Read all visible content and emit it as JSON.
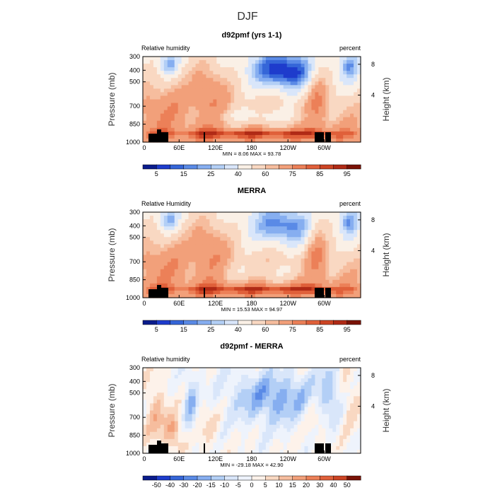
{
  "figure": {
    "title": "DJF"
  },
  "colors": {
    "abs_scale": [
      "#0a1c8c",
      "#1e3ccc",
      "#3566d8",
      "#5a8ae6",
      "#86aef0",
      "#b3cff6",
      "#d9e6fa",
      "#faf0e6",
      "#f9d8c2",
      "#f6bd9e",
      "#f2a07a",
      "#ec8058",
      "#e0603a",
      "#cc4424",
      "#b02a16",
      "#7a1206"
    ],
    "diff_scale": [
      "#0a1c8c",
      "#1e3ccc",
      "#3566d8",
      "#5a8ae6",
      "#86aef0",
      "#b3cff6",
      "#d9e6fa",
      "#eef3fc",
      "#fdf2ea",
      "#f9d8c2",
      "#f6bd9e",
      "#f2a07a",
      "#ec8058",
      "#e0603a",
      "#cc4424",
      "#7a1206"
    ]
  },
  "chart_data": [
    {
      "type": "heatmap",
      "title": "d92pmf (yrs 1-1)",
      "left_label": "Relative humidity",
      "right_label": "percent",
      "ylabel": "Pressure (mb)",
      "ylabel_right": "Height (km)",
      "yticks": [
        "300",
        "400",
        "500",
        "700",
        "850",
        "1000"
      ],
      "yticks_right": [
        "8",
        "4"
      ],
      "xticks": [
        "0",
        "60E",
        "120E",
        "180",
        "120W",
        "60W"
      ],
      "stats": "MIN =    8.06   MAX =   93.78",
      "colorbar_labels": [
        "5",
        "15",
        "25",
        "40",
        "60",
        "75",
        "85",
        "95"
      ],
      "scale": "abs_scale"
    },
    {
      "type": "heatmap",
      "title": "MERRA",
      "left_label": "Relative Humidity",
      "right_label": "percent",
      "ylabel": "Pressure (mb)",
      "ylabel_right": "Height (km)",
      "yticks": [
        "300",
        "400",
        "500",
        "700",
        "850",
        "1000"
      ],
      "yticks_right": [
        "8",
        "4"
      ],
      "xticks": [
        "0",
        "60E",
        "120E",
        "180",
        "120W",
        "60W"
      ],
      "stats": "MIN =   15.53   MAX =   94.97",
      "colorbar_labels": [
        "5",
        "15",
        "25",
        "40",
        "60",
        "75",
        "85",
        "95"
      ],
      "scale": "abs_scale"
    },
    {
      "type": "heatmap",
      "title": "d92pmf - MERRA",
      "left_label": "Relative humidity",
      "right_label": "percent",
      "ylabel": "Pressure (mb)",
      "ylabel_right": "Height (km)",
      "yticks": [
        "300",
        "400",
        "500",
        "700",
        "850",
        "1000"
      ],
      "yticks_right": [
        "8",
        "4"
      ],
      "xticks": [
        "0",
        "60E",
        "120E",
        "180",
        "120W",
        "60W"
      ],
      "stats": "MIN =  -29.18   MAX =   42.90",
      "colorbar_labels": [
        "-50",
        "-40",
        "-30",
        "-20",
        "-15",
        "-10",
        "-5",
        "0",
        "5",
        "10",
        "15",
        "20",
        "30",
        "40",
        "50"
      ],
      "scale": "diff_scale"
    }
  ]
}
